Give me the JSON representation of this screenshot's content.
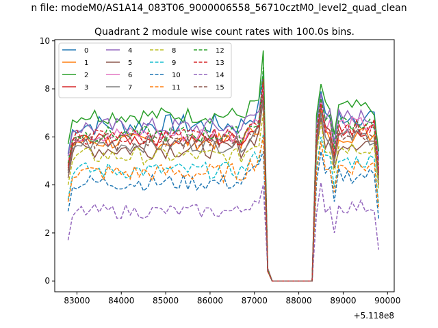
{
  "chart_data": {
    "type": "line",
    "suptitle": "n file: modeM0/AS1A14_083T06_9000006558_56710cztM0_level2_quad_clean",
    "title": "Quadrant 2 module wise count rates with 100.0s bins.",
    "xlabel": "",
    "ylabel": "",
    "x_offset_label": "+5.118e8",
    "xlim": [
      82500,
      90150
    ],
    "ylim": [
      -0.45,
      10.05
    ],
    "xticks": [
      83000,
      84000,
      85000,
      86000,
      87000,
      88000,
      89000,
      90000
    ],
    "xtick_labels": [
      "83000",
      "84000",
      "85000",
      "86000",
      "87000",
      "88000",
      "89000",
      "90000"
    ],
    "yticks": [
      0,
      2,
      4,
      6,
      8,
      10
    ],
    "ytick_labels": [
      "0",
      "2",
      "4",
      "6",
      "8",
      "10"
    ],
    "legend_position": "upper-left",
    "legend_columns": 4,
    "segments": [
      {
        "x_start": 82800,
        "x_end": 87200,
        "count": 45
      },
      {
        "x_start": 87300,
        "x_end": 87400,
        "zero_through": 88300,
        "count": 0
      },
      {
        "x_start": 88400,
        "x_end": 89800,
        "count": 15
      }
    ],
    "series": [
      {
        "name": "0",
        "color": "#1f77b4",
        "dash": "solid",
        "level": 6.5,
        "amp": 0.45,
        "peak": 8.6,
        "post": 6.9
      },
      {
        "name": "1",
        "color": "#ff7f0e",
        "dash": "solid",
        "level": 5.8,
        "amp": 0.35,
        "peak": 7.9,
        "post": 6.1
      },
      {
        "name": "2",
        "color": "#2ca02c",
        "dash": "solid",
        "level": 6.9,
        "amp": 0.35,
        "peak": 9.6,
        "post": 7.2
      },
      {
        "name": "3",
        "color": "#d62728",
        "dash": "solid",
        "level": 5.9,
        "amp": 0.3,
        "peak": 8.4,
        "post": 6.3
      },
      {
        "name": "4",
        "color": "#9467bd",
        "dash": "solid",
        "level": 6.4,
        "amp": 0.4,
        "peak": 8.2,
        "post": 6.8
      },
      {
        "name": "5",
        "color": "#8c564b",
        "dash": "solid",
        "level": 5.5,
        "amp": 0.4,
        "peak": 7.5,
        "post": 5.8
      },
      {
        "name": "6",
        "color": "#e377c2",
        "dash": "solid",
        "level": 6.1,
        "amp": 0.35,
        "peak": 8.0,
        "post": 6.5
      },
      {
        "name": "7",
        "color": "#7f7f7f",
        "dash": "solid",
        "level": 5.7,
        "amp": 0.35,
        "peak": 7.6,
        "post": 6.0
      },
      {
        "name": "8",
        "color": "#bcbd22",
        "dash": "dashed",
        "level": 5.2,
        "amp": 0.35,
        "peak": 7.0,
        "post": 5.6
      },
      {
        "name": "9",
        "color": "#17becf",
        "dash": "dashed",
        "level": 4.6,
        "amp": 0.35,
        "peak": 6.1,
        "post": 5.0
      },
      {
        "name": "10",
        "color": "#1f77b4",
        "dash": "dashed",
        "level": 4.1,
        "amp": 0.35,
        "peak": 5.4,
        "post": 4.4
      },
      {
        "name": "11",
        "color": "#ff7f0e",
        "dash": "dashed",
        "level": 4.5,
        "amp": 0.4,
        "peak": 6.0,
        "post": 4.8
      },
      {
        "name": "12",
        "color": "#2ca02c",
        "dash": "dashed",
        "level": 6.1,
        "amp": 0.35,
        "peak": 8.9,
        "post": 6.6
      },
      {
        "name": "13",
        "color": "#d62728",
        "dash": "dashed",
        "level": 6.0,
        "amp": 0.35,
        "peak": 8.3,
        "post": 6.4
      },
      {
        "name": "14",
        "color": "#9467bd",
        "dash": "dashed",
        "level": 2.9,
        "amp": 0.3,
        "peak": 4.0,
        "post": 3.1
      },
      {
        "name": "15",
        "color": "#8c564b",
        "dash": "dashed",
        "level": 5.8,
        "amp": 0.35,
        "peak": 7.8,
        "post": 6.2
      }
    ]
  }
}
